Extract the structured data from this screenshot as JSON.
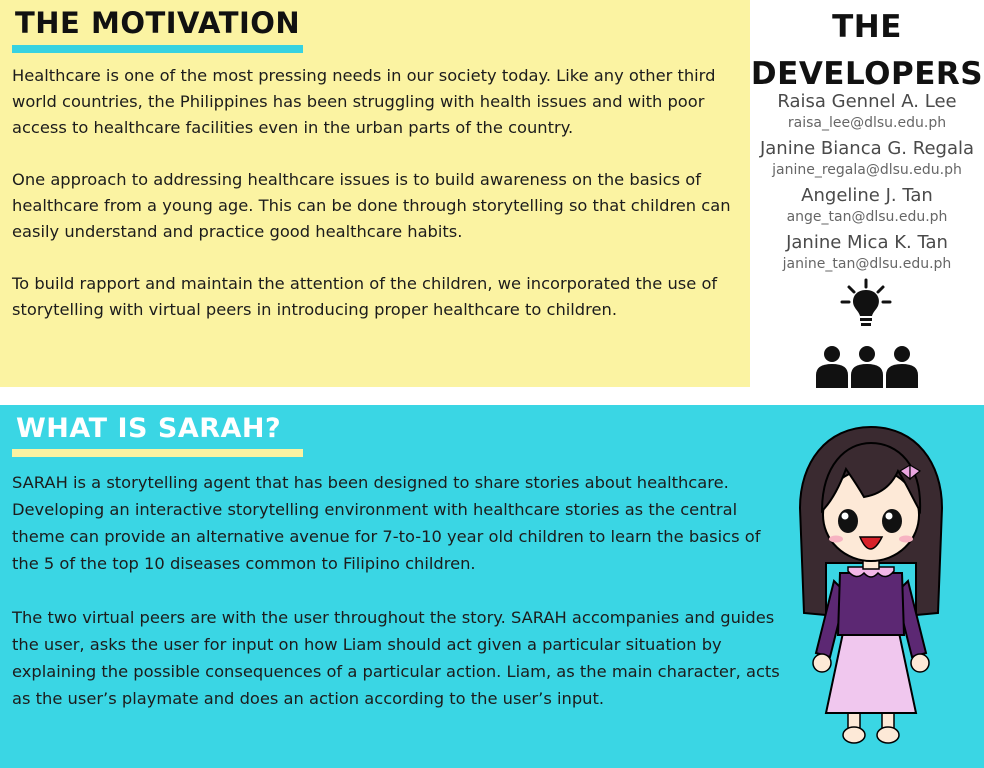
{
  "motivation": {
    "title": "THE MOTIVATION",
    "paragraphs": [
      "Healthcare is one of the most pressing needs in our society today. Like any other third world countries, the Philippines has been struggling with health issues and with poor access to healthcare facilities even in the urban parts of the country.",
      "One approach to addressing healthcare issues is to build awareness on the basics of healthcare from a young age. This can be done through storytelling so that children can easily understand and practice good healthcare habits.",
      "To build rapport and maintain the attention of the children, we incorporated the use of storytelling with virtual peers in introducing proper healthcare to children."
    ]
  },
  "developers": {
    "title_line1": "THE",
    "title_line2": "DEVELOPERS",
    "people": [
      {
        "name": "Raisa Gennel A. Lee",
        "email": "raisa_lee@dlsu.edu.ph"
      },
      {
        "name": "Janine Bianca G. Regala",
        "email": "janine_regala@dlsu.edu.ph"
      },
      {
        "name": "Angeline J. Tan",
        "email": "ange_tan@dlsu.edu.ph"
      },
      {
        "name": "Janine Mica K. Tan",
        "email": "janine_tan@dlsu.edu.ph"
      }
    ],
    "icon": "idea-team-icon"
  },
  "sarah": {
    "title": "WHAT IS SARAH?",
    "paragraphs": [
      "SARAH is a storytelling agent that has been designed to share stories about healthcare. Developing an interactive storytelling environment with healthcare stories as the central theme can provide an alternative avenue for 7-to-10 year old children to learn the basics of the 5 of the top 10 diseases common to Filipino children.",
      "The two virtual peers are with the user throughout the story. SARAH accompanies and guides the user, asks the user for input on how Liam should act given a particular situation by explaining the possible consequences of a particular action. Liam, as the main character, acts as the user’s playmate and does an action according to the user’s input."
    ],
    "illustration": "sarah-character-illustration"
  },
  "colors": {
    "yellow_panel": "#fbf3a2",
    "cyan_panel": "#3ad6e4",
    "accent_underline": "#37d2e1"
  }
}
